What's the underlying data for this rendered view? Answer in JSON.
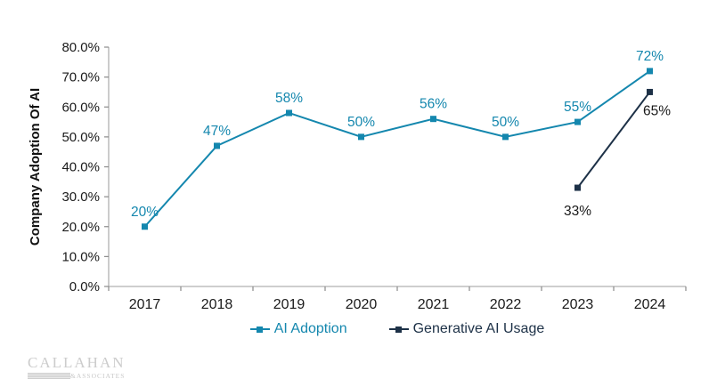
{
  "chart_data": {
    "type": "line",
    "categories": [
      "2017",
      "2018",
      "2019",
      "2020",
      "2021",
      "2022",
      "2023",
      "2024"
    ],
    "series": [
      {
        "name": "AI Adoption",
        "color": "#1487AE",
        "label_color": "#1487AE",
        "values": [
          20,
          47,
          58,
          50,
          56,
          50,
          55,
          72
        ],
        "labels": [
          "20%",
          "47%",
          "58%",
          "50%",
          "56%",
          "50%",
          "55%",
          "72%"
        ],
        "label_offsets": {}
      },
      {
        "name": "Generative AI Usage",
        "color": "#1D3147",
        "label_color": "#1a1a1a",
        "values": [
          null,
          null,
          null,
          null,
          null,
          null,
          33,
          65
        ],
        "labels": [
          null,
          null,
          null,
          null,
          null,
          null,
          "33%",
          "65%"
        ],
        "label_offsets": {
          "6": [
            0,
            31
          ],
          "7": [
            8,
            26
          ]
        }
      }
    ],
    "title": "",
    "xlabel": "",
    "ylabel": "Company Adoption Of AI",
    "ylim": [
      0,
      80
    ],
    "ytick_step": 10,
    "ytick_labels": [
      "0.0%",
      "10.0%",
      "20.0%",
      "30.0%",
      "40.0%",
      "50.0%",
      "60.0%",
      "70.0%",
      "80.0%"
    ],
    "grid": false,
    "legend_position": "bottom",
    "colors": {
      "axis": "#b0b0b0",
      "tick": "#8a8a8a",
      "text": "#1a1a1a"
    }
  },
  "logo": {
    "line1": "CALLAHAN",
    "line2": "&ASSOCIATES"
  }
}
